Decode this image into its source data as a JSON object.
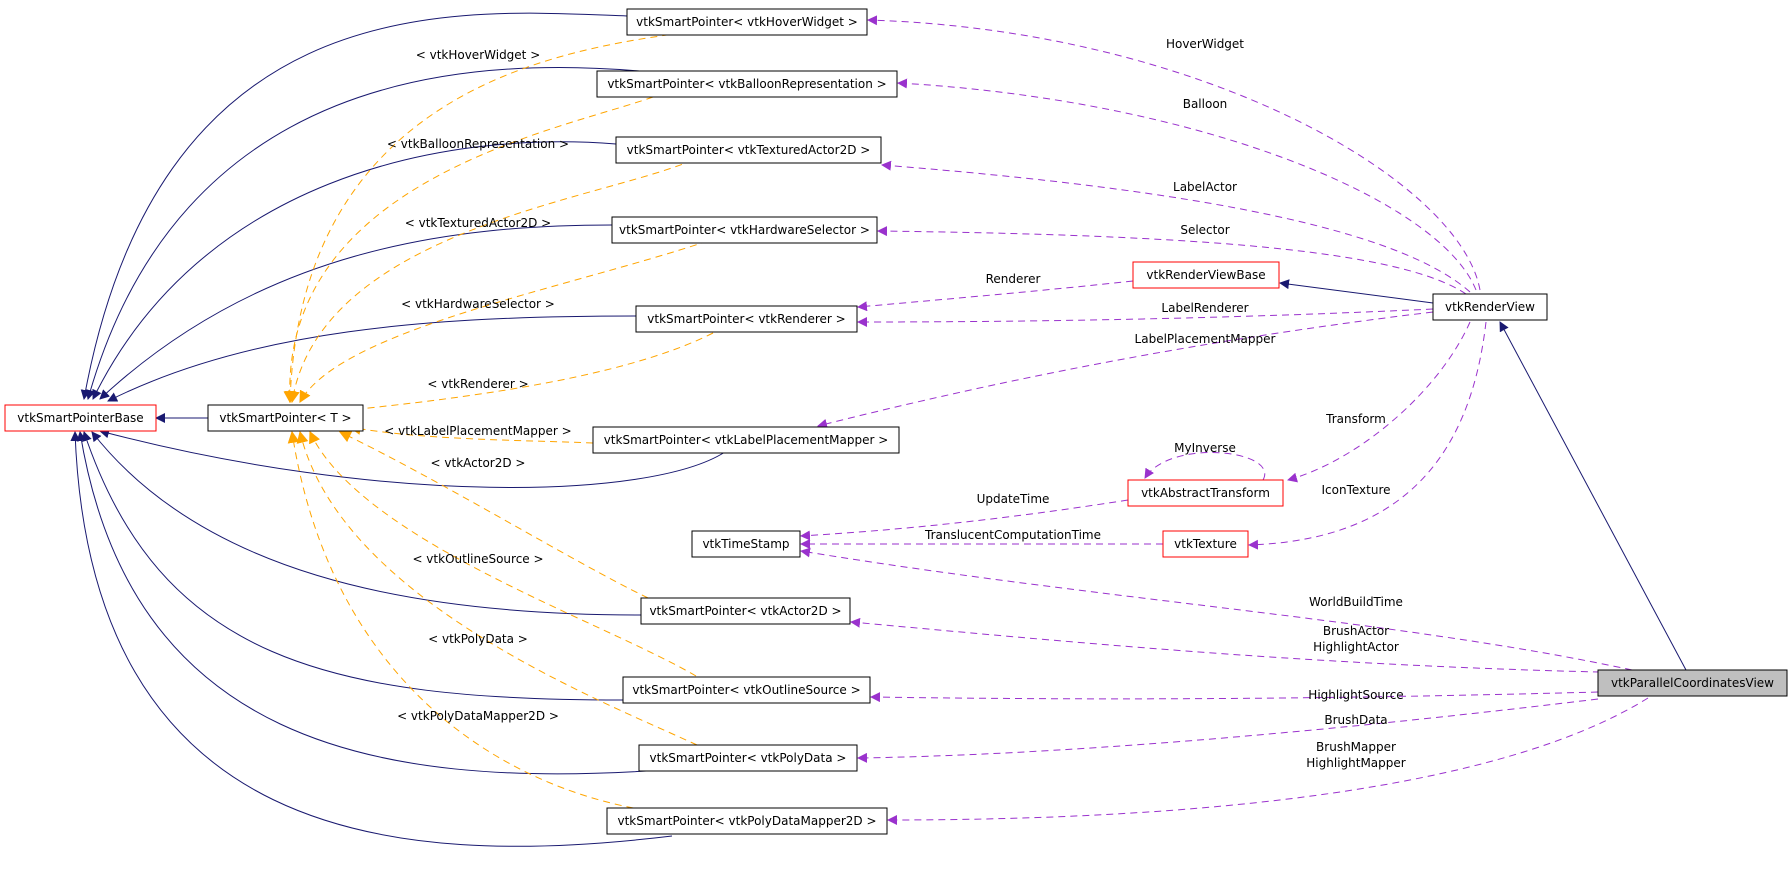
{
  "nodes": {
    "base": "vtkSmartPointerBase",
    "sp_t": "vtkSmartPointer< T >",
    "hover": "vtkSmartPointer< vtkHoverWidget >",
    "balloon": "vtkSmartPointer< vtkBalloonRepresentation >",
    "textured": "vtkSmartPointer< vtkTexturedActor2D >",
    "hwsel": "vtkSmartPointer< vtkHardwareSelector >",
    "renderer": "vtkSmartPointer< vtkRenderer >",
    "lpm": "vtkSmartPointer< vtkLabelPlacementMapper >",
    "actor2d": "vtkSmartPointer< vtkActor2D >",
    "outline": "vtkSmartPointer< vtkOutlineSource >",
    "polydata": "vtkSmartPointer< vtkPolyData >",
    "pdm2d": "vtkSmartPointer< vtkPolyDataMapper2D >",
    "rvbase": "vtkRenderViewBase",
    "rview": "vtkRenderView",
    "abstrans": "vtkAbstractTransform",
    "timestamp": "vtkTimeStamp",
    "texture": "vtkTexture",
    "pcv": "vtkParallelCoordinatesView"
  },
  "template_labels": {
    "hover": "< vtkHoverWidget >",
    "balloon": "< vtkBalloonRepresentation >",
    "textured": "< vtkTexturedActor2D >",
    "hwsel": "< vtkHardwareSelector >",
    "renderer": "< vtkRenderer >",
    "lpm": "< vtkLabelPlacementMapper >",
    "actor2d": "< vtkActor2D >",
    "outline": "< vtkOutlineSource >",
    "polydata": "< vtkPolyData >",
    "pdm2d": "< vtkPolyDataMapper2D >"
  },
  "member_labels": {
    "hoverwidget": "HoverWidget",
    "balloon": "Balloon",
    "labelactor": "LabelActor",
    "selector": "Selector",
    "renderer": "Renderer",
    "labelrenderer": "LabelRenderer",
    "lpm": "LabelPlacementMapper",
    "transform": "Transform",
    "myinverse": "MyInverse",
    "updatetime": "UpdateTime",
    "icontexture": "IconTexture",
    "tct": "TranslucentComputationTime",
    "worldbuild": "WorldBuildTime",
    "brushactor": "BrushActor",
    "highlightactor": "HighlightActor",
    "highlightsource": "HighlightSource",
    "brushdata": "BrushData",
    "brushmapper": "BrushMapper",
    "highlightmapper": "HighlightMapper"
  },
  "colors": {
    "inheritance": "#191970",
    "template": "#ffa500",
    "usage": "#9a32cd",
    "red_border": "#ff0000",
    "highlight_fill": "#bfbfbf"
  }
}
